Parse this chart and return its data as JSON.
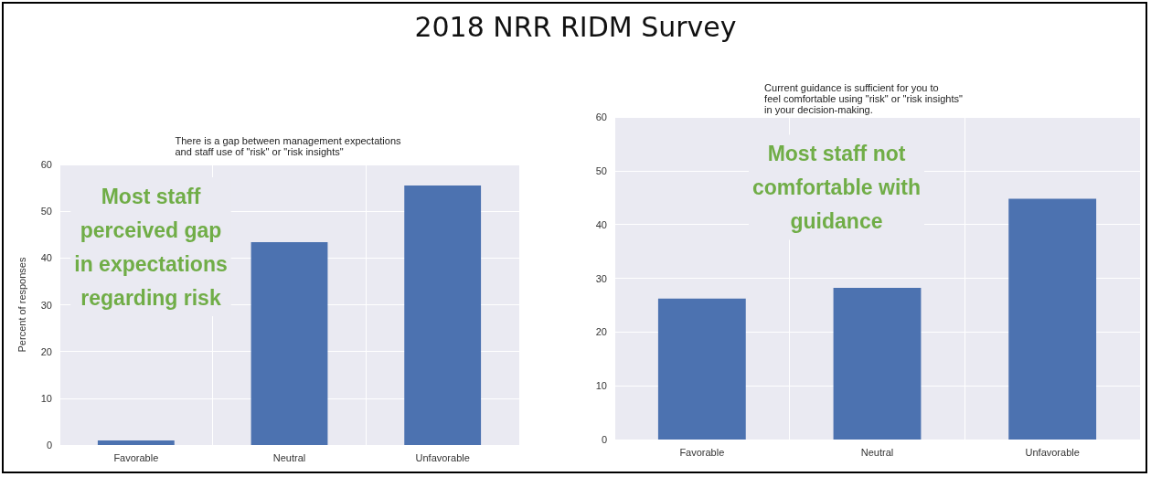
{
  "chart_data": [
    {
      "type": "bar",
      "title": "2018 NRR RIDM Survey",
      "subtitle": "There is a gap between management expectations\nand staff use of \"risk\" or \"risk insights\"",
      "ylabel": "Percent of responses",
      "categories": [
        "Favorable",
        "Neutral",
        "Unfavorable"
      ],
      "values": [
        1,
        43.4,
        55.5
      ],
      "color": "#4c72b0",
      "ylim": [
        0,
        60
      ],
      "yticks": [
        0,
        10,
        20,
        30,
        40,
        50,
        60
      ],
      "grid": true,
      "annotations": [
        "Most staff\nperceived gap\nin expectations\nregarding risk"
      ]
    },
    {
      "type": "bar",
      "subtitle": "Current guidance is sufficient for you to\nfeel comfortable using \"risk\" or \"risk insights\"\nin your decision-making.",
      "categories": [
        "Favorable",
        "Neutral",
        "Unfavorable"
      ],
      "values": [
        26.2,
        28.2,
        44.8
      ],
      "color": "#4c72b0",
      "ylim": [
        0,
        60
      ],
      "yticks": [
        0,
        10,
        20,
        30,
        40,
        50,
        60
      ],
      "grid": true,
      "annotations": [
        "Most staff not\ncomfortable with\nguidance"
      ]
    }
  ]
}
